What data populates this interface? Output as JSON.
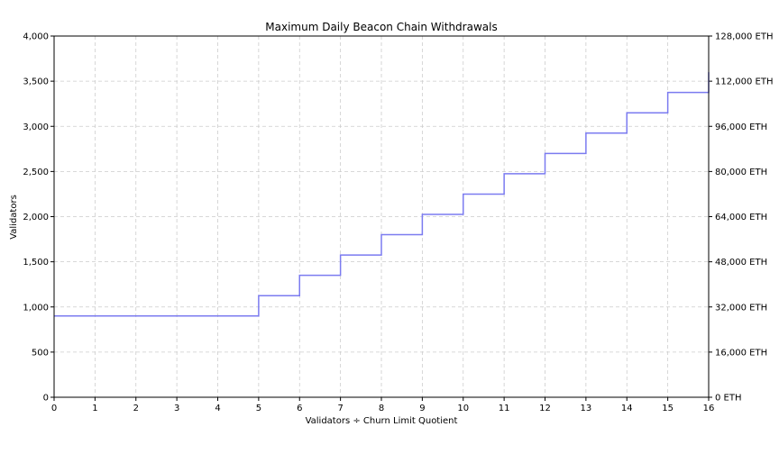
{
  "chart_data": {
    "type": "line",
    "step": true,
    "title": "Maximum Daily Beacon Chain Withdrawals",
    "xlabel": "Validators ÷ Churn Limit Quotient",
    "ylabel": "Validators",
    "xlim": [
      0,
      16
    ],
    "ylim": [
      0,
      4000
    ],
    "x_ticks": [
      0,
      1,
      2,
      3,
      4,
      5,
      6,
      7,
      8,
      9,
      10,
      11,
      12,
      13,
      14,
      15,
      16
    ],
    "x_tick_labels": [
      "0",
      "1",
      "2",
      "3",
      "4",
      "5",
      "6",
      "7",
      "8",
      "9",
      "10",
      "11",
      "12",
      "13",
      "14",
      "15",
      "16"
    ],
    "y_ticks": [
      0,
      500,
      1000,
      1500,
      2000,
      2500,
      3000,
      3500,
      4000
    ],
    "y_tick_labels": [
      "0",
      "500",
      "1,000",
      "1,500",
      "2,000",
      "2,500",
      "3,000",
      "3,500",
      "4,000"
    ],
    "y2_ticks": [
      0,
      16000,
      32000,
      48000,
      64000,
      80000,
      96000,
      112000,
      128000
    ],
    "y2_tick_labels": [
      "0 ETH",
      "16,000 ETH",
      "32,000 ETH",
      "48,000 ETH",
      "64,000 ETH",
      "80,000 ETH",
      "96,000 ETH",
      "112,000 ETH",
      "128,000 ETH"
    ],
    "grid": true,
    "line_color": "#7b7bf0",
    "series": [
      {
        "x": [
          0,
          5,
          5,
          6,
          6,
          7,
          7,
          8,
          8,
          9,
          9,
          10,
          10,
          11,
          11,
          12,
          12,
          13,
          13,
          14,
          14,
          15,
          15,
          16,
          16
        ],
        "values": [
          900,
          900,
          1125,
          1125,
          1350,
          1350,
          1575,
          1575,
          1800,
          1800,
          2025,
          2025,
          2250,
          2250,
          2475,
          2475,
          2700,
          2700,
          2925,
          2925,
          3150,
          3150,
          3375,
          3375,
          3600
        ]
      }
    ]
  }
}
